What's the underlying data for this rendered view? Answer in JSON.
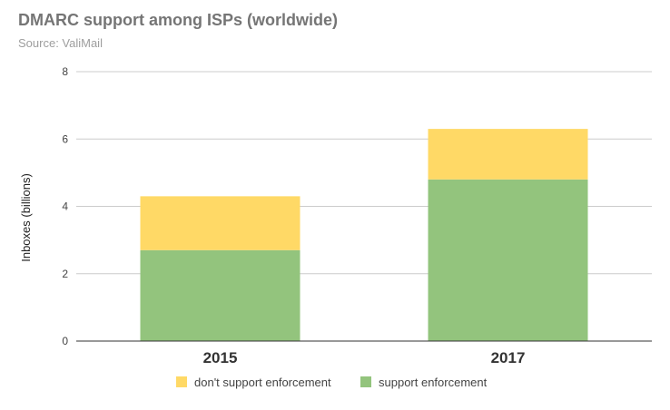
{
  "header": {
    "title": "DMARC support among ISPs (worldwide)",
    "subtitle": "Source: ValiMail"
  },
  "chart_data": {
    "type": "bar",
    "stacked": true,
    "categories": [
      "2015",
      "2017"
    ],
    "series": [
      {
        "name": "support enforcement",
        "values": [
          2.7,
          4.8
        ],
        "color": "#93c47d"
      },
      {
        "name": "don't support enforcement",
        "values": [
          1.6,
          1.5
        ],
        "color": "#ffd966"
      }
    ],
    "ylabel": "Inboxes (billions)",
    "xlabel": "",
    "ylim": [
      0,
      8
    ],
    "yticks": [
      0,
      2,
      4,
      6,
      8
    ],
    "grid": true,
    "legend_position": "bottom",
    "legend_order": [
      "don't support enforcement",
      "support enforcement"
    ]
  }
}
